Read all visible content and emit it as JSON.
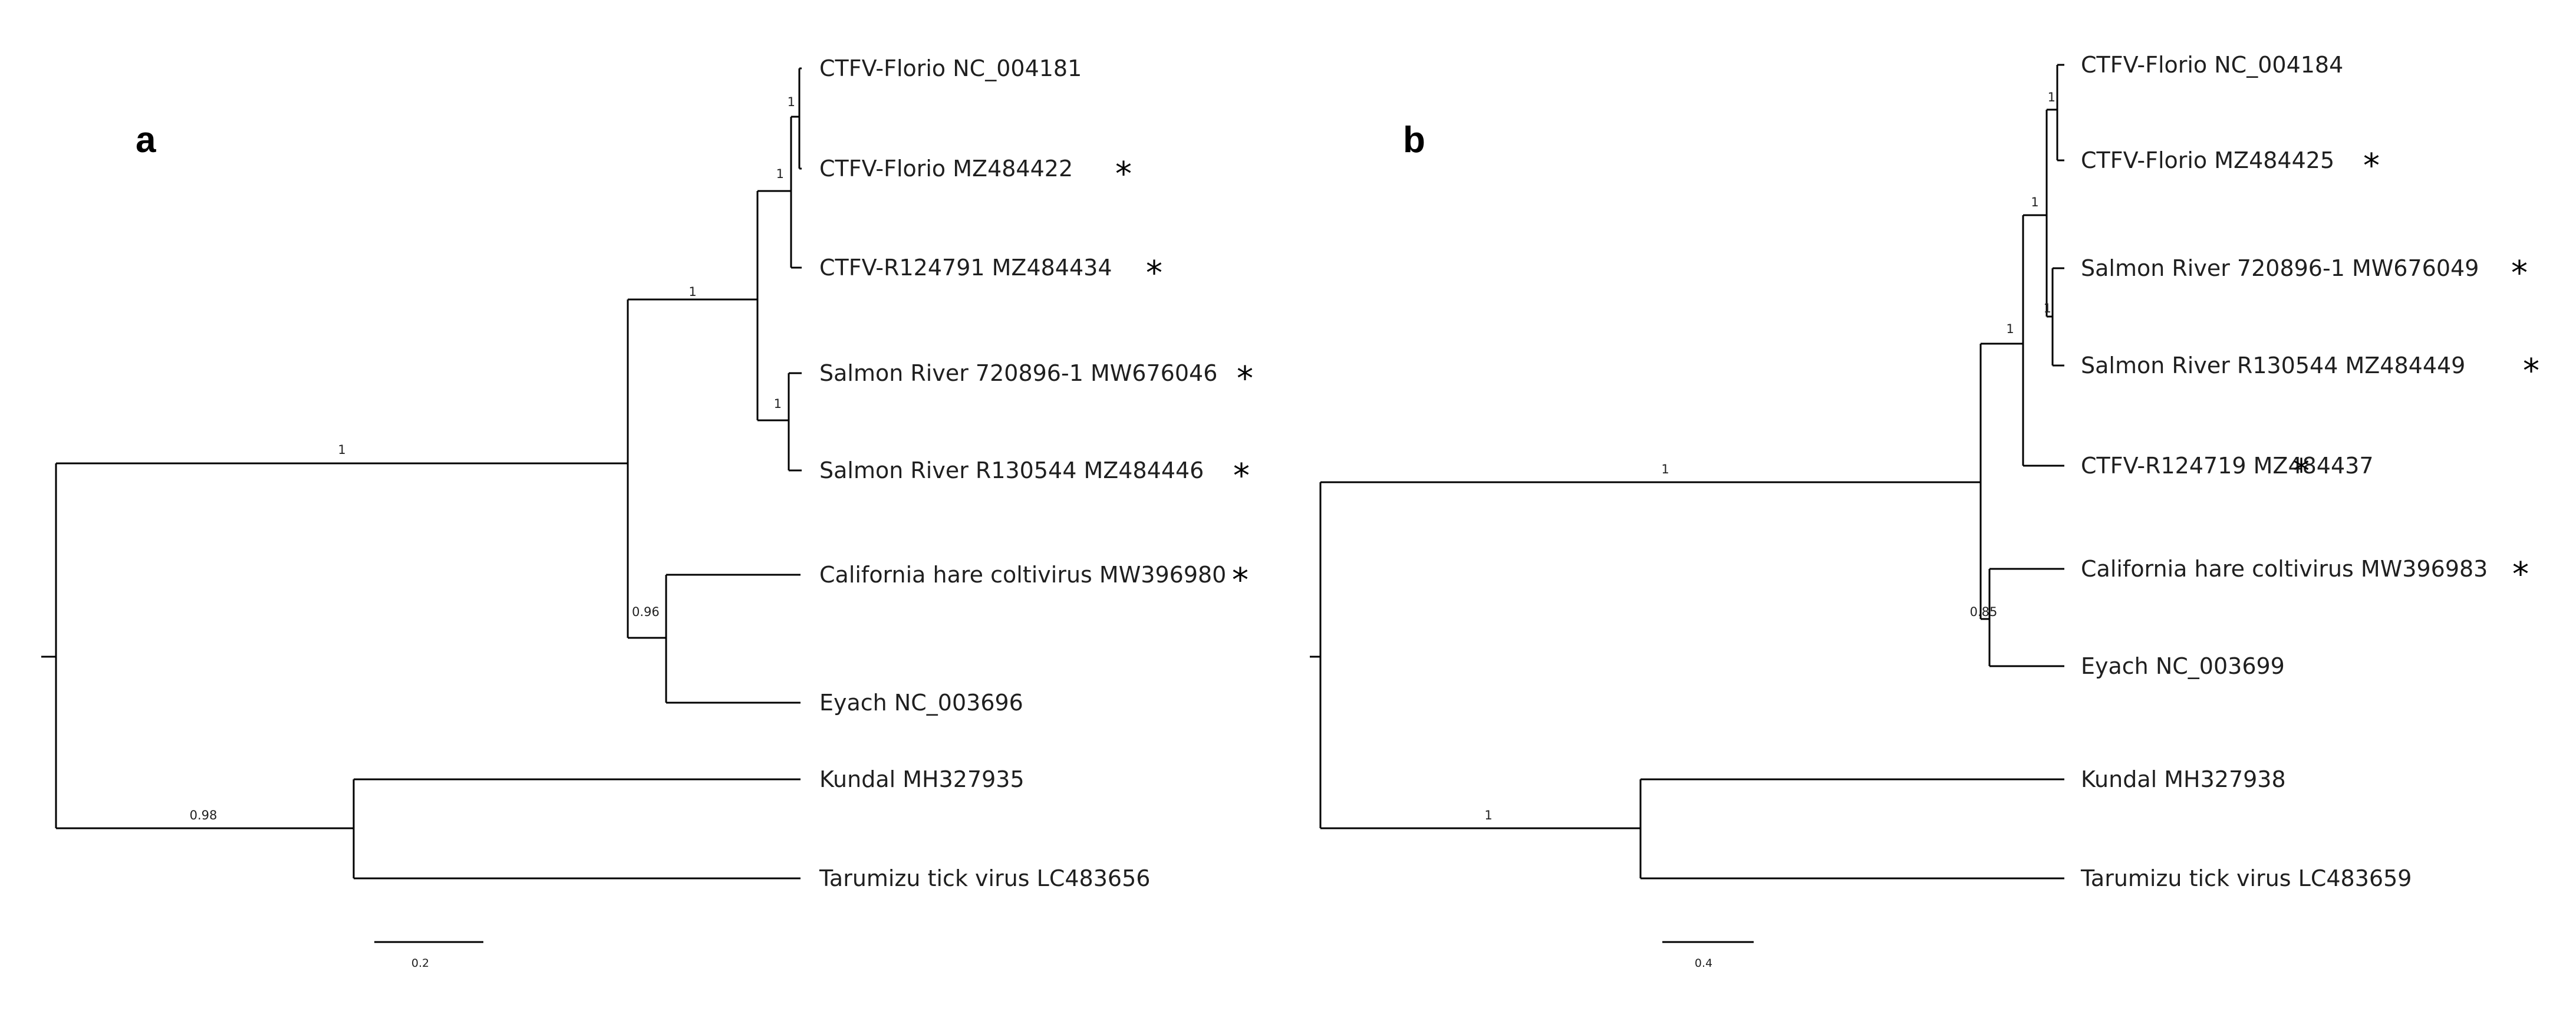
{
  "panels": [
    {
      "letter": "a",
      "scale_label": "0.2",
      "leaves": [
        {
          "label": "CTFV-Florio NC_004181",
          "starred": false
        },
        {
          "label": "CTFV-Florio MZ484422",
          "starred": true
        },
        {
          "label": "CTFV-R124791 MZ484434",
          "starred": true
        },
        {
          "label": "Salmon River 720896-1 MW676046",
          "starred": true
        },
        {
          "label": "Salmon River R130544 MZ484446",
          "starred": true
        },
        {
          "label": "California hare coltivirus MW396980",
          "starred": true
        },
        {
          "label": "Eyach NC_003696",
          "starred": false
        },
        {
          "label": "Kundal MH327935",
          "starred": false
        },
        {
          "label": "Tarumizu tick virus LC483656",
          "starred": false
        }
      ],
      "support_values": [
        "1",
        "1",
        "1",
        "1",
        "1",
        "0.96",
        "0.98"
      ]
    },
    {
      "letter": "b",
      "scale_label": "0.4",
      "leaves": [
        {
          "label": "CTFV-Florio NC_004184",
          "starred": false
        },
        {
          "label": "CTFV-Florio MZ484425",
          "starred": true
        },
        {
          "label": "Salmon River 720896-1 MW676049",
          "starred": true
        },
        {
          "label": "Salmon River R130544 MZ484449",
          "starred": true
        },
        {
          "label": "CTFV-R124719 MZ484437",
          "starred": true
        },
        {
          "label": "California hare coltivirus MW396983",
          "starred": true
        },
        {
          "label": "Eyach NC_003699",
          "starred": false
        },
        {
          "label": "Kundal MH327938",
          "starred": false
        },
        {
          "label": "Tarumizu tick virus LC483659",
          "starred": false
        }
      ],
      "support_values": [
        "1",
        "1",
        "1",
        "1",
        "1",
        "0.85",
        "1"
      ]
    }
  ],
  "star_symbol": "*"
}
